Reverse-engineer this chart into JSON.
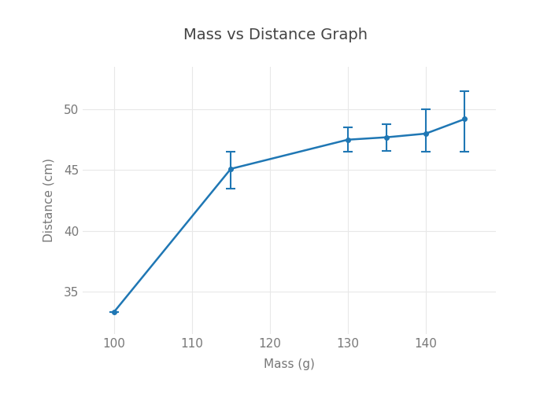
{
  "title": "Mass vs Distance Graph",
  "xlabel": "Mass (g)",
  "ylabel": "Distance (cm)",
  "x": [
    100,
    115,
    130,
    135,
    140,
    145
  ],
  "y": [
    33.3,
    45.1,
    47.5,
    47.7,
    48.0,
    49.2
  ],
  "yerr_lower": [
    0.0,
    1.6,
    1.0,
    1.1,
    1.5,
    2.7
  ],
  "yerr_upper": [
    0.0,
    1.4,
    1.0,
    1.1,
    2.0,
    2.3
  ],
  "line_color": "#1f77b4",
  "marker_size": 4,
  "line_width": 1.8,
  "xlim": [
    96,
    149
  ],
  "ylim": [
    31.5,
    53.5
  ],
  "xticks": [
    100,
    110,
    120,
    130,
    140
  ],
  "yticks": [
    35,
    40,
    45,
    50
  ],
  "bg_color": "#ffffff",
  "plot_bg_color": "#ffffff",
  "grid_color": "#e8e8e8",
  "title_color": "#444444",
  "label_color": "#777777",
  "tick_color": "#777777",
  "title_fontsize": 14,
  "label_fontsize": 11,
  "tick_fontsize": 11
}
